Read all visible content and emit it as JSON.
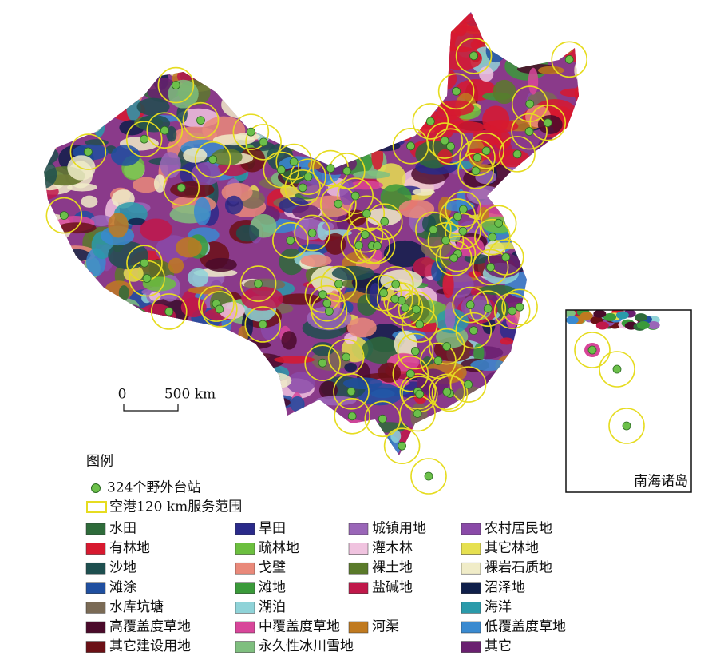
{
  "map": {
    "scale": {
      "zero": "0",
      "distance": "500 km"
    },
    "inset_label": "南海诸岛",
    "legend": {
      "title": "图例",
      "stations": "324个野外台站",
      "buffer": "空港120 km服务范围",
      "columns": [
        [
          {
            "name": "水田",
            "color": "#2e6b3a"
          },
          {
            "name": "有林地",
            "color": "#d7192f"
          },
          {
            "name": "沙地",
            "color": "#1e4f4f"
          },
          {
            "name": "滩涂",
            "color": "#1f4fa0"
          },
          {
            "name": "水库坑塘",
            "color": "#7a6a55"
          },
          {
            "name": "高覆盖度草地",
            "color": "#4a0a2a"
          },
          {
            "name": "其它建设用地",
            "color": "#6b1016"
          }
        ],
        [
          {
            "name": "旱田",
            "color": "#2a2a8a"
          },
          {
            "name": "疏林地",
            "color": "#6cbf3f"
          },
          {
            "name": "戈壁",
            "color": "#e9897a"
          },
          {
            "name": "滩地",
            "color": "#3a9a3a"
          },
          {
            "name": "湖泊",
            "color": "#8fd3d8"
          },
          {
            "name": "中覆盖度草地",
            "color": "#d8469a"
          },
          {
            "name": "永久性冰川雪地",
            "color": "#7fbf7f"
          }
        ],
        [
          {
            "name": "城镇用地",
            "color": "#9a66b8"
          },
          {
            "name": "灌木林",
            "color": "#f0c3df"
          },
          {
            "name": "裸土地",
            "color": "#5a7a2a"
          },
          {
            "name": "盐碱地",
            "color": "#c0184a"
          },
          {
            "name": "河渠",
            "color": "#c07a20"
          }
        ],
        [
          {
            "name": "农村居民地",
            "color": "#8a4aa8"
          },
          {
            "name": "其它林地",
            "color": "#e6e050"
          },
          {
            "name": "裸岩石质地",
            "color": "#f0ecc8"
          },
          {
            "name": "沼泽地",
            "color": "#0f1f4a"
          },
          {
            "name": "海洋",
            "color": "#2a9aaa"
          },
          {
            "name": "低覆盖度草地",
            "color": "#3a8ad0"
          },
          {
            "name": "其它",
            "color": "#6a2070"
          }
        ]
      ]
    }
  }
}
